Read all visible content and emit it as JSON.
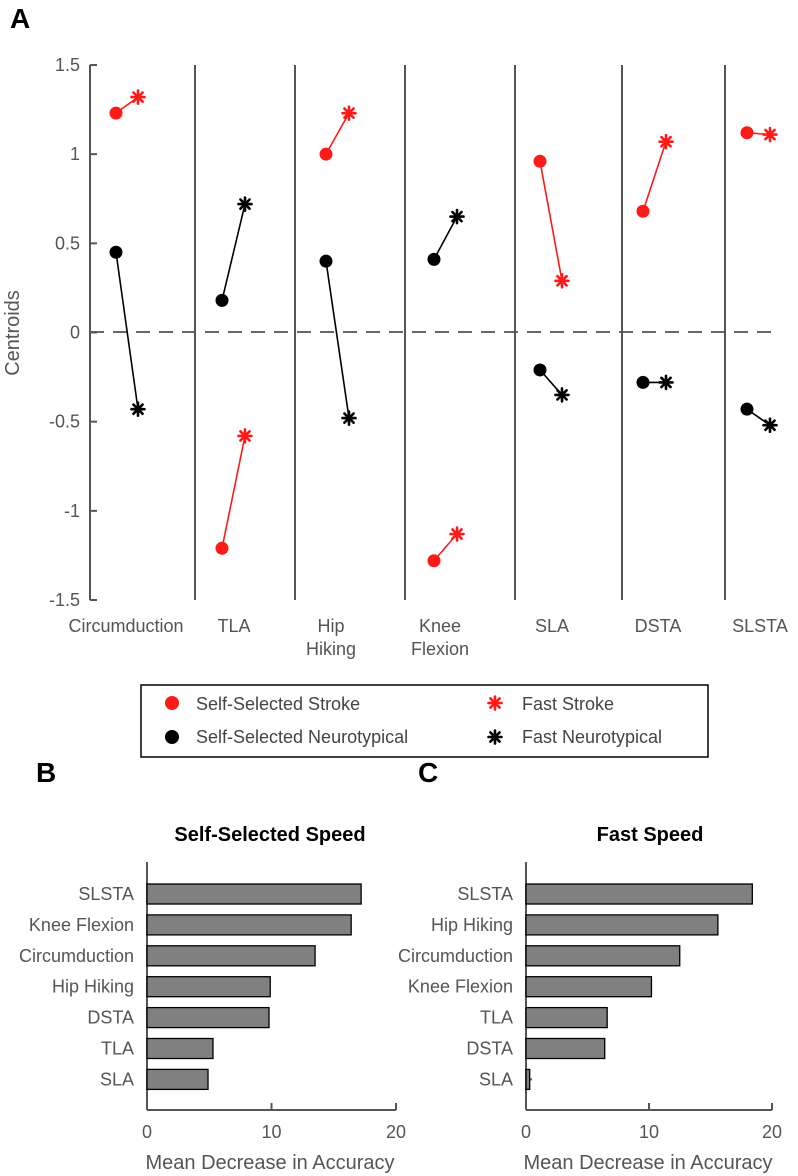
{
  "panel_labels": {
    "a": "A",
    "b": "B",
    "c": "C"
  },
  "colors": {
    "stroke": "#ff1a1a",
    "neurotypical": "#000000",
    "axis": "#555555",
    "bar": "#808080",
    "zero_line": "#666666"
  },
  "legend": {
    "self_stroke": "Self-Selected Stroke",
    "fast_stroke": "Fast Stroke",
    "self_neuro": "Self-Selected Neurotypical",
    "fast_neuro": "Fast Neurotypical"
  },
  "chart_data": [
    {
      "id": "A",
      "type": "scatter",
      "title": "",
      "ylabel": "Centroids",
      "ylim": [
        -1.5,
        1.5
      ],
      "yticks": [
        "-1.5",
        "-1",
        "-0.5",
        "0",
        "0.5",
        "1",
        "1.5"
      ],
      "zero_line": "dashed",
      "categories": [
        {
          "name": "Circumduction",
          "label_lines": [
            "Circumduction"
          ],
          "stroke": {
            "self": 1.23,
            "fast": 1.32
          },
          "neuro": {
            "self": 0.45,
            "fast": -0.43
          }
        },
        {
          "name": "TLA",
          "label_lines": [
            "TLA"
          ],
          "stroke": {
            "self": -1.21,
            "fast": -0.58
          },
          "neuro": {
            "self": 0.18,
            "fast": 0.72
          }
        },
        {
          "name": "Hip Hiking",
          "label_lines": [
            "Hip",
            "Hiking"
          ],
          "stroke": {
            "self": 1.0,
            "fast": 1.23
          },
          "neuro": {
            "self": 0.4,
            "fast": -0.48
          }
        },
        {
          "name": "Knee Flexion",
          "label_lines": [
            "Knee",
            "Flexion"
          ],
          "stroke": {
            "self": -1.28,
            "fast": -1.13
          },
          "neuro": {
            "self": 0.41,
            "fast": 0.65
          }
        },
        {
          "name": "SLA",
          "label_lines": [
            "SLA"
          ],
          "stroke": {
            "self": 0.96,
            "fast": 0.29
          },
          "neuro": {
            "self": -0.21,
            "fast": -0.35
          }
        },
        {
          "name": "DSTA",
          "label_lines": [
            "DSTA"
          ],
          "stroke": {
            "self": 0.68,
            "fast": 1.07
          },
          "neuro": {
            "self": -0.28,
            "fast": -0.28
          }
        },
        {
          "name": "SLSTA",
          "label_lines": [
            "SLSTA"
          ],
          "stroke": {
            "self": 1.12,
            "fast": 1.11
          },
          "neuro": {
            "self": -0.43,
            "fast": -0.52
          }
        }
      ]
    },
    {
      "id": "B",
      "type": "bar",
      "orientation": "horizontal",
      "title": "Self-Selected Speed",
      "xlabel": "Mean Decrease in Accuracy",
      "xlim": [
        0,
        20
      ],
      "xticks": [
        "0",
        "10",
        "20"
      ],
      "categories": [
        "SLSTA",
        "Knee Flexion",
        "Circumduction",
        "Hip Hiking",
        "DSTA",
        "TLA",
        "SLA"
      ],
      "values": [
        17.2,
        16.4,
        13.5,
        9.9,
        9.8,
        5.3,
        4.9
      ]
    },
    {
      "id": "C",
      "type": "bar",
      "orientation": "horizontal",
      "title": "Fast Speed",
      "xlabel": "Mean Decrease in Accuracy",
      "xlim": [
        0,
        20
      ],
      "xticks": [
        "0",
        "10",
        "20"
      ],
      "categories": [
        "SLSTA",
        "Hip Hiking",
        "Circumduction",
        "Knee Flexion",
        "TLA",
        "DSTA",
        "SLA"
      ],
      "values": [
        18.4,
        15.6,
        12.5,
        10.2,
        6.6,
        6.4,
        0.3
      ]
    }
  ]
}
